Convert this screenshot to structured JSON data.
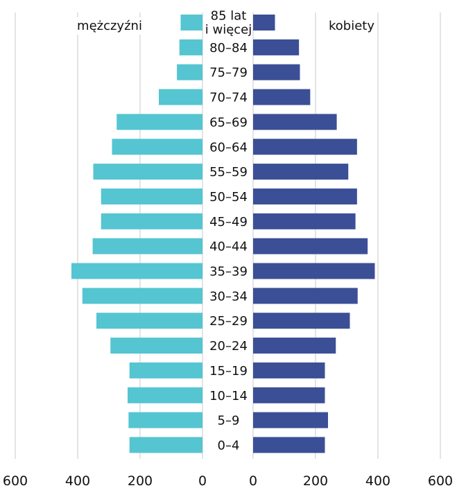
{
  "chart_data": {
    "type": "bar",
    "orientation": "horizontal",
    "layout": "population-pyramid",
    "categories": [
      "85 lat i więcej",
      "80–84",
      "75–79",
      "70–74",
      "65–69",
      "60–64",
      "55–59",
      "50–54",
      "45–49",
      "40–44",
      "35–39",
      "30–34",
      "25–29",
      "20–24",
      "15–19",
      "10–14",
      "5–9",
      "0–4"
    ],
    "category_lines": [
      [
        "85 lat",
        "i więcej"
      ]
    ],
    "series": [
      {
        "name": "mężczyźni",
        "side": "left",
        "color": "#55c5d1",
        "values": [
          70,
          74,
          82,
          140,
          275,
          290,
          350,
          325,
          325,
          352,
          420,
          385,
          340,
          295,
          234,
          240,
          237,
          234
        ]
      },
      {
        "name": "kobiety",
        "side": "right",
        "color": "#3b4f96",
        "values": [
          70,
          147,
          150,
          183,
          268,
          333,
          305,
          333,
          328,
          367,
          390,
          335,
          310,
          265,
          230,
          230,
          240,
          230
        ]
      }
    ],
    "x_ticks_left": [
      "600",
      "400",
      "200",
      "0"
    ],
    "x_ticks_right": [
      "0",
      "200",
      "400",
      "600"
    ],
    "xlim": [
      0,
      600
    ],
    "grid": true,
    "legend": "top"
  }
}
